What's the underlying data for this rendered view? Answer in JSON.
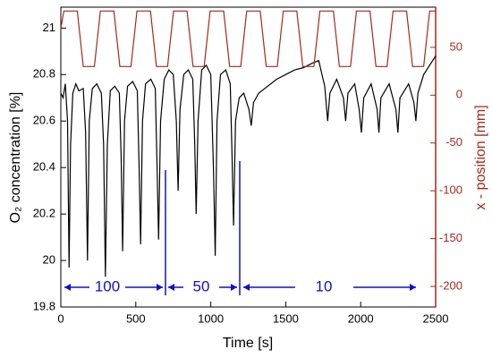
{
  "chart_data": {
    "type": "line",
    "x_label": "Time [s]",
    "y_label": "O₂ concentration [%]",
    "y2_label": "x - position [mm]",
    "xlim": [
      0,
      2500
    ],
    "xticks": [
      0,
      500,
      1000,
      1500,
      2000,
      2500
    ],
    "ylim": [
      19.8,
      21.09
    ],
    "yticks": [
      {
        "value": 19.8,
        "label": "19.8"
      },
      20.0,
      20.2,
      20.4,
      20.6,
      20.8,
      21.0
    ],
    "y2lim": [
      -221.5,
      92
    ],
    "y2ticks": [
      -200,
      -150,
      -100,
      -50,
      0,
      50
    ],
    "y2color": "#a3291c",
    "annotations": [
      "100",
      "50",
      "10"
    ],
    "series": [
      {
        "name": "O2",
        "color": "#000000",
        "x": [
          0,
          15,
          30,
          45,
          55,
          65,
          80,
          100,
          120,
          150,
          165,
          178,
          190,
          210,
          240,
          270,
          285,
          297,
          310,
          330,
          360,
          390,
          402,
          412,
          425,
          445,
          480,
          510,
          522,
          532,
          545,
          565,
          600,
          630,
          642,
          652,
          665,
          690,
          720,
          750,
          770,
          782,
          795,
          820,
          850,
          880,
          893,
          903,
          915,
          940,
          970,
          1000,
          1018,
          1030,
          1042,
          1065,
          1100,
          1130,
          1142,
          1152,
          1165,
          1190,
          1220,
          1255,
          1270,
          1285,
          1320,
          1380,
          1440,
          1500,
          1560,
          1620,
          1680,
          1720,
          1760,
          1780,
          1795,
          1840,
          1885,
          1900,
          1915,
          1960,
          1990,
          2005,
          2020,
          2070,
          2110,
          2122,
          2135,
          2190,
          2235,
          2248,
          2262,
          2320,
          2355,
          2368,
          2382,
          2420,
          2460,
          2500
        ],
        "values": [
          20.72,
          20.7,
          20.76,
          20.6,
          19.97,
          20.5,
          20.72,
          20.76,
          20.73,
          20.74,
          20.55,
          20.0,
          20.6,
          20.74,
          20.76,
          20.72,
          20.5,
          19.93,
          20.5,
          20.73,
          20.75,
          20.72,
          20.45,
          20.04,
          20.6,
          20.75,
          20.77,
          20.73,
          20.4,
          20.07,
          20.6,
          20.76,
          20.78,
          20.74,
          20.4,
          20.09,
          20.6,
          20.78,
          20.82,
          20.8,
          20.6,
          20.3,
          20.65,
          20.8,
          20.82,
          20.78,
          20.5,
          20.2,
          20.6,
          20.82,
          20.84,
          20.8,
          20.4,
          20.02,
          20.6,
          20.8,
          20.82,
          20.76,
          20.45,
          20.15,
          20.6,
          20.7,
          20.72,
          20.65,
          20.58,
          20.68,
          20.72,
          20.75,
          20.78,
          20.8,
          20.82,
          20.83,
          20.85,
          20.86,
          20.75,
          20.6,
          20.72,
          20.78,
          20.7,
          20.6,
          20.72,
          20.76,
          20.65,
          20.55,
          20.7,
          20.76,
          20.65,
          20.55,
          20.7,
          20.76,
          20.65,
          20.55,
          20.7,
          20.76,
          20.68,
          20.6,
          20.72,
          20.8,
          20.84,
          20.88
        ]
      },
      {
        "name": "x-position",
        "color": "#a3291c",
        "axis": "y2",
        "x": [
          0,
          20,
          110,
          150,
          224,
          264,
          354,
          394,
          468,
          508,
          598,
          638,
          712,
          752,
          842,
          882,
          956,
          996,
          1086,
          1126,
          1200,
          1240,
          1330,
          1370,
          1444,
          1484,
          1574,
          1614,
          1688,
          1728,
          1818,
          1858,
          1932,
          1972,
          2062,
          2102,
          2176,
          2216,
          2306,
          2346,
          2420,
          2460,
          2500
        ],
        "values": [
          70,
          88,
          88,
          30,
          30,
          88,
          88,
          30,
          30,
          88,
          88,
          30,
          30,
          88,
          88,
          30,
          30,
          88,
          88,
          30,
          30,
          88,
          88,
          30,
          30,
          88,
          88,
          30,
          30,
          88,
          88,
          30,
          30,
          88,
          88,
          30,
          30,
          88,
          88,
          30,
          30,
          88,
          88
        ]
      }
    ]
  }
}
